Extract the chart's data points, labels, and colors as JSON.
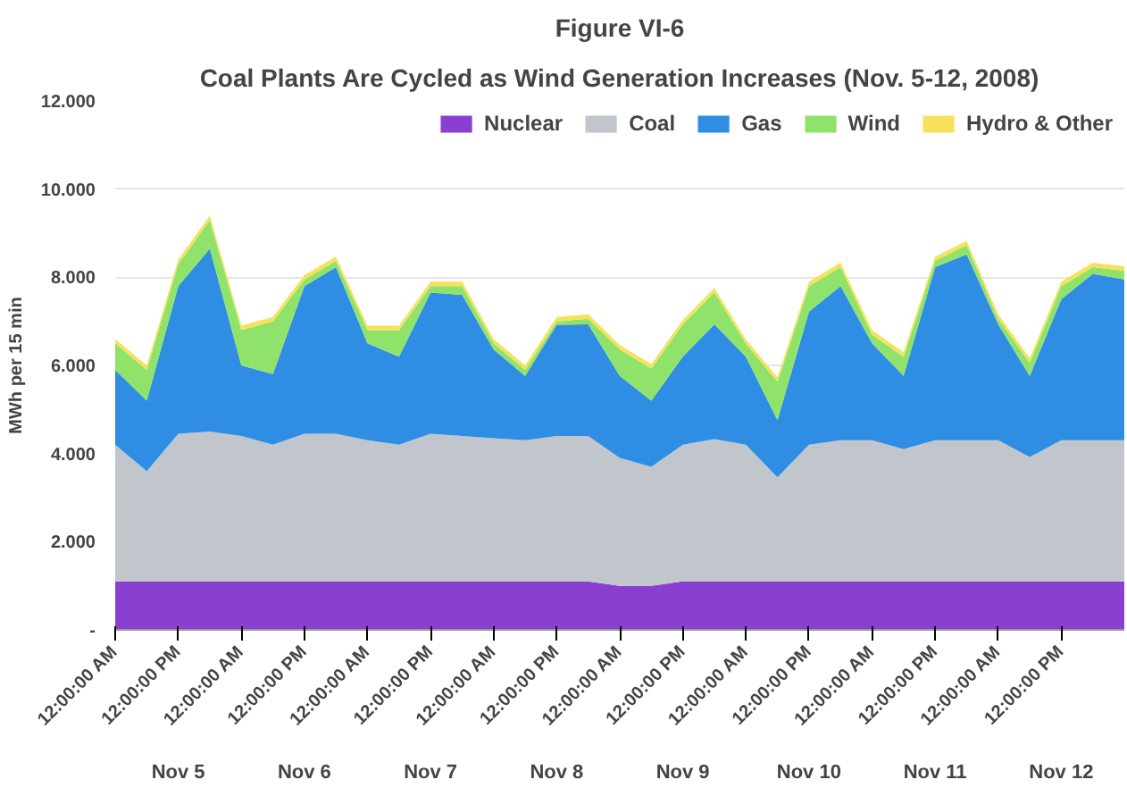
{
  "chart_data": {
    "type": "area",
    "stacked": true,
    "title": "Figure VI-6",
    "subtitle": "Coal Plants Are Cycled as Wind Generation Increases (Nov. 5-12, 2008)",
    "ylabel": "MWh per 15 min",
    "x": [
      "2008-11-05T00:00",
      "2008-11-05T06:00",
      "2008-11-05T12:00",
      "2008-11-05T18:00",
      "2008-11-06T00:00",
      "2008-11-06T06:00",
      "2008-11-06T12:00",
      "2008-11-06T18:00",
      "2008-11-07T00:00",
      "2008-11-07T06:00",
      "2008-11-07T12:00",
      "2008-11-07T18:00",
      "2008-11-08T00:00",
      "2008-11-08T06:00",
      "2008-11-08T12:00",
      "2008-11-08T18:00",
      "2008-11-09T00:00",
      "2008-11-09T06:00",
      "2008-11-09T12:00",
      "2008-11-09T18:00",
      "2008-11-10T00:00",
      "2008-11-10T06:00",
      "2008-11-10T12:00",
      "2008-11-10T18:00",
      "2008-11-11T00:00",
      "2008-11-11T06:00",
      "2008-11-11T12:00",
      "2008-11-11T18:00",
      "2008-11-12T00:00",
      "2008-11-12T06:00",
      "2008-11-12T12:00",
      "2008-11-12T18:00",
      "2008-11-13T00:00"
    ],
    "series": [
      {
        "name": "Nuclear",
        "color": "#8a3fd1",
        "values": [
          1100,
          1100,
          1100,
          1100,
          1100,
          1100,
          1100,
          1100,
          1100,
          1100,
          1100,
          1100,
          1100,
          1100,
          1100,
          1100,
          1000,
          1000,
          1100,
          1100,
          1100,
          1100,
          1100,
          1100,
          1100,
          1100,
          1100,
          1100,
          1100,
          1100,
          1100,
          1100,
          1100
        ]
      },
      {
        "name": "Coal",
        "color": "#c0c6cc",
        "values": [
          3100,
          2500,
          3350,
          3400,
          3300,
          3100,
          3350,
          3350,
          3200,
          3100,
          3350,
          3300,
          3250,
          3200,
          3300,
          3300,
          2900,
          2700,
          3100,
          3230,
          3100,
          2360,
          3100,
          3200,
          3200,
          3000,
          3200,
          3200,
          3200,
          2820,
          3200,
          3200,
          3200
        ]
      },
      {
        "name": "Gas",
        "color": "#2f8de4",
        "values": [
          1700,
          1600,
          3350,
          4150,
          1600,
          1600,
          3350,
          3780,
          2200,
          2000,
          3200,
          3200,
          2010,
          1460,
          2520,
          2530,
          1860,
          1500,
          2000,
          2600,
          2000,
          1300,
          3020,
          3500,
          2200,
          1660,
          3930,
          4220,
          2630,
          1840,
          3200,
          3780,
          3650
        ]
      },
      {
        "name": "Wind",
        "color": "#8fe36a",
        "values": [
          600,
          700,
          500,
          650,
          800,
          1200,
          150,
          140,
          300,
          600,
          150,
          200,
          140,
          140,
          80,
          130,
          600,
          730,
          730,
          730,
          290,
          870,
          580,
          430,
          200,
          440,
          140,
          210,
          130,
          300,
          300,
          150,
          200
        ]
      },
      {
        "name": "Hydro & Other",
        "color": "#f7e15a",
        "values": [
          100,
          100,
          100,
          100,
          100,
          100,
          100,
          100,
          100,
          100,
          100,
          100,
          100,
          100,
          100,
          100,
          100,
          100,
          100,
          100,
          100,
          100,
          100,
          100,
          100,
          100,
          100,
          100,
          100,
          100,
          100,
          100,
          100
        ]
      }
    ],
    "xlim": [
      "2008-11-05T00:00",
      "2008-11-13T00:00"
    ],
    "xticks": [
      {
        "value": "2008-11-05T00:00",
        "label": "12:00:00 AM"
      },
      {
        "value": "2008-11-05T12:00",
        "label": "12:00:00 PM"
      },
      {
        "value": "2008-11-06T00:00",
        "label": "12:00:00 AM"
      },
      {
        "value": "2008-11-06T12:00",
        "label": "12:00:00 PM"
      },
      {
        "value": "2008-11-07T00:00",
        "label": "12:00:00 AM"
      },
      {
        "value": "2008-11-07T12:00",
        "label": "12:00:00 PM"
      },
      {
        "value": "2008-11-08T00:00",
        "label": "12:00:00 AM"
      },
      {
        "value": "2008-11-08T12:00",
        "label": "12:00:00 PM"
      },
      {
        "value": "2008-11-09T00:00",
        "label": "12:00:00 AM"
      },
      {
        "value": "2008-11-09T12:00",
        "label": "12:00:00 PM"
      },
      {
        "value": "2008-11-10T00:00",
        "label": "12:00:00 AM"
      },
      {
        "value": "2008-11-10T12:00",
        "label": "12:00:00 PM"
      },
      {
        "value": "2008-11-11T00:00",
        "label": "12:00:00 AM"
      },
      {
        "value": "2008-11-11T12:00",
        "label": "12:00:00 PM"
      },
      {
        "value": "2008-11-12T00:00",
        "label": "12:00:00 AM"
      },
      {
        "value": "2008-11-12T12:00",
        "label": "12:00:00 PM"
      }
    ],
    "x2lim": [
      "2008-11-05T00:00",
      "2008-11-13T00:00"
    ],
    "x2ticks": [
      {
        "value": "2008-11-05T12:00",
        "label": "Nov 5"
      },
      {
        "value": "2008-11-06T12:00",
        "label": "Nov 6"
      },
      {
        "value": "2008-11-07T12:00",
        "label": "Nov 7"
      },
      {
        "value": "2008-11-08T12:00",
        "label": "Nov 8"
      },
      {
        "value": "2008-11-09T12:00",
        "label": "Nov 9"
      },
      {
        "value": "2008-11-10T12:00",
        "label": "Nov 10"
      },
      {
        "value": "2008-11-11T12:00",
        "label": "Nov 11"
      },
      {
        "value": "2008-11-12T12:00",
        "label": "Nov 12"
      }
    ],
    "ylim": [
      0,
      12000
    ],
    "yticks": [
      {
        "value": 0,
        "label": "-"
      },
      {
        "value": 2000,
        "label": "2.000"
      },
      {
        "value": 4000,
        "label": "4.000"
      },
      {
        "value": 6000,
        "label": "6.000"
      },
      {
        "value": 8000,
        "label": "8.000"
      },
      {
        "value": 10000,
        "label": "10.000"
      },
      {
        "value": 12000,
        "label": "12.000"
      }
    ],
    "grid": "y",
    "legend": "top right"
  }
}
